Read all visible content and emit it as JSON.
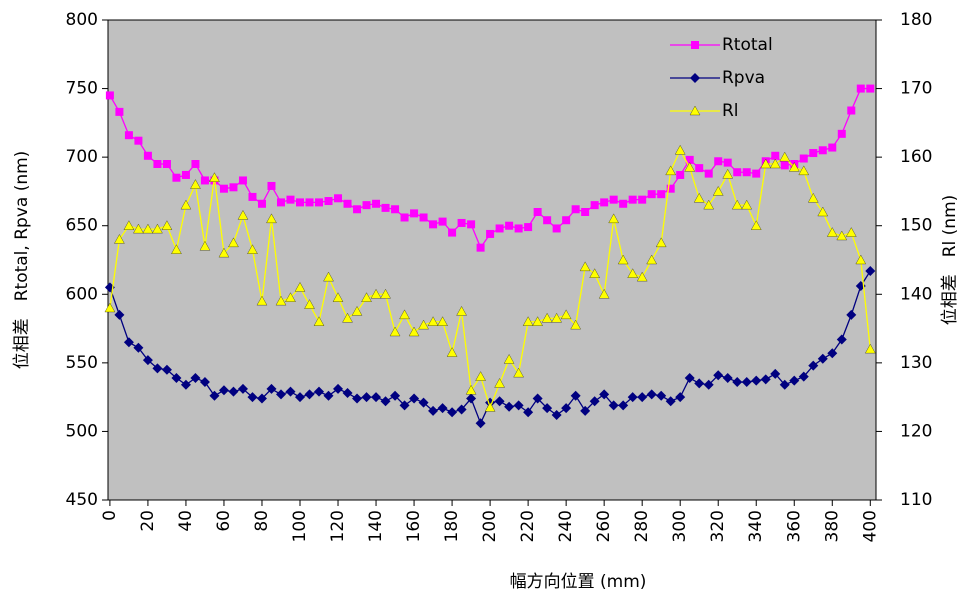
{
  "chart_data": {
    "type": "line",
    "x_label": "幅方向位置 (mm)",
    "y_label": "位相差　Rtotal, Rpva (nm)",
    "y2_label": "位相差　Rl (nm)",
    "x": [
      0,
      5,
      10,
      15,
      20,
      25,
      30,
      35,
      40,
      45,
      50,
      55,
      60,
      65,
      70,
      75,
      80,
      85,
      90,
      95,
      100,
      105,
      110,
      115,
      120,
      125,
      130,
      135,
      140,
      145,
      150,
      155,
      160,
      165,
      170,
      175,
      180,
      185,
      190,
      195,
      200,
      205,
      210,
      215,
      220,
      225,
      230,
      235,
      240,
      245,
      250,
      255,
      260,
      265,
      270,
      275,
      280,
      285,
      290,
      295,
      300,
      305,
      310,
      315,
      320,
      325,
      330,
      335,
      340,
      345,
      350,
      355,
      360,
      365,
      370,
      375,
      380,
      385,
      390,
      395,
      400
    ],
    "series": [
      {
        "name": "Rtotal",
        "color": "#ff00ff",
        "marker": "square",
        "values": [
          745,
          733,
          716,
          712,
          701,
          695,
          695,
          685,
          687,
          695,
          683,
          683,
          677,
          678,
          683,
          671,
          666,
          679,
          667,
          669,
          667,
          667,
          667,
          668,
          670,
          666,
          662,
          665,
          666,
          663,
          662,
          656,
          659,
          656,
          651,
          653,
          645,
          652,
          651,
          634,
          644,
          648,
          650,
          648,
          649,
          660,
          654,
          648,
          654,
          662,
          660,
          665,
          667,
          669,
          666,
          669,
          669,
          673,
          673,
          677,
          687,
          698,
          692,
          688,
          697,
          696,
          689,
          689,
          688,
          697,
          701,
          694,
          695,
          699,
          703,
          705,
          707,
          717,
          734,
          750,
          750
        ]
      },
      {
        "name": "Rpva",
        "color": "#000080",
        "marker": "diamond",
        "values": [
          605,
          585,
          565,
          561,
          552,
          546,
          545,
          539,
          534,
          539,
          536,
          526,
          530,
          529,
          531,
          525,
          524,
          531,
          527,
          529,
          525,
          527,
          529,
          526,
          531,
          528,
          524,
          525,
          525,
          522,
          526,
          519,
          524,
          521,
          515,
          517,
          514,
          516,
          524,
          506,
          521,
          522,
          518,
          519,
          514,
          524,
          517,
          512,
          517,
          526,
          515,
          522,
          527,
          519,
          519,
          525,
          525,
          527,
          526,
          522,
          525,
          539,
          535,
          534,
          541,
          539,
          536,
          536,
          537,
          538,
          542,
          534,
          537,
          540,
          548,
          553,
          557,
          567,
          585,
          606,
          617
        ]
      },
      {
        "name": "Rl",
        "color": "#ffff00",
        "marker": "triangle",
        "axis": "y2",
        "values": [
          138,
          148,
          150,
          149.5,
          149.5,
          149.5,
          150,
          146.5,
          153,
          156,
          147,
          157,
          146,
          147.5,
          151.5,
          146.5,
          139,
          151,
          139,
          139.5,
          141,
          138.5,
          136,
          142.5,
          139.5,
          136.5,
          137.5,
          139.5,
          140,
          140,
          134.5,
          137,
          134.5,
          135.5,
          136,
          136,
          131.5,
          137.5,
          126,
          128,
          123.5,
          127,
          130.5,
          128.5,
          136,
          136,
          136.5,
          136.5,
          137,
          135.5,
          144,
          143,
          140,
          151,
          145,
          143,
          142.5,
          145,
          147.5,
          158,
          161,
          158.5,
          154,
          153,
          155,
          157.5,
          153,
          153,
          150,
          159,
          159,
          160,
          158.5,
          158,
          154,
          152,
          149,
          148.5,
          149,
          145,
          132
        ]
      }
    ],
    "xlim": [
      -1,
      403
    ],
    "xticks": [
      0,
      20,
      40,
      60,
      80,
      100,
      120,
      140,
      160,
      180,
      200,
      220,
      240,
      260,
      280,
      300,
      320,
      340,
      360,
      380,
      400
    ],
    "ylim": [
      450,
      800
    ],
    "yticks": [
      450,
      500,
      550,
      600,
      650,
      700,
      750,
      800
    ],
    "y2lim": [
      110,
      180
    ],
    "y2ticks": [
      110,
      120,
      130,
      140,
      150,
      160,
      170,
      180
    ],
    "legend": "upper right",
    "plot_background": "#c0c0c0"
  }
}
